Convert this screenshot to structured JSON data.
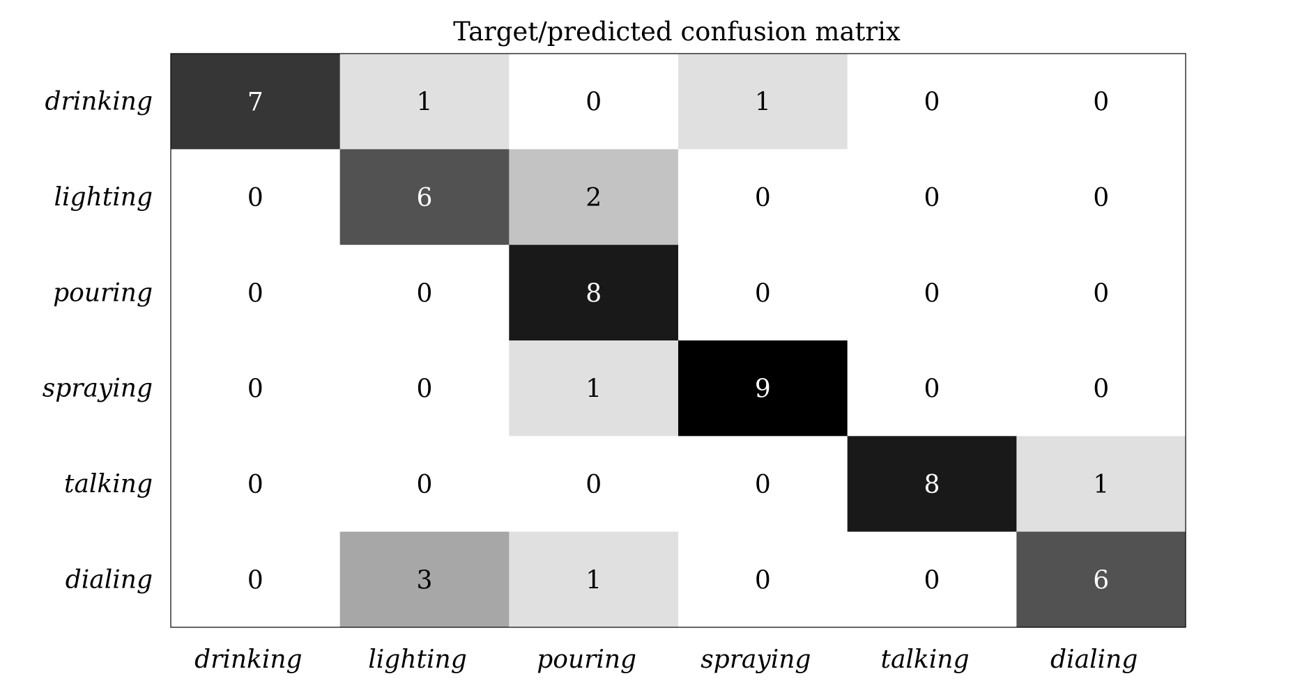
{
  "chart_data": {
    "type": "heatmap",
    "title": "Target/predicted confusion matrix",
    "xlabel": "",
    "ylabel": "",
    "row_labels": [
      "drinking",
      "lighting",
      "pouring",
      "spraying",
      "talking",
      "dialing"
    ],
    "col_labels": [
      "drinking",
      "lighting",
      "pouring",
      "spraying",
      "talking",
      "dialing"
    ],
    "values": [
      [
        7,
        1,
        0,
        1,
        0,
        0
      ],
      [
        0,
        6,
        2,
        0,
        0,
        0
      ],
      [
        0,
        0,
        8,
        0,
        0,
        0
      ],
      [
        0,
        0,
        1,
        9,
        0,
        0
      ],
      [
        0,
        0,
        0,
        0,
        8,
        1
      ],
      [
        0,
        3,
        1,
        0,
        0,
        6
      ]
    ],
    "color_scale": "grayscale (white = 0, black = 9)",
    "value_range": [
      0,
      9
    ],
    "grid": false,
    "legend": "none"
  }
}
